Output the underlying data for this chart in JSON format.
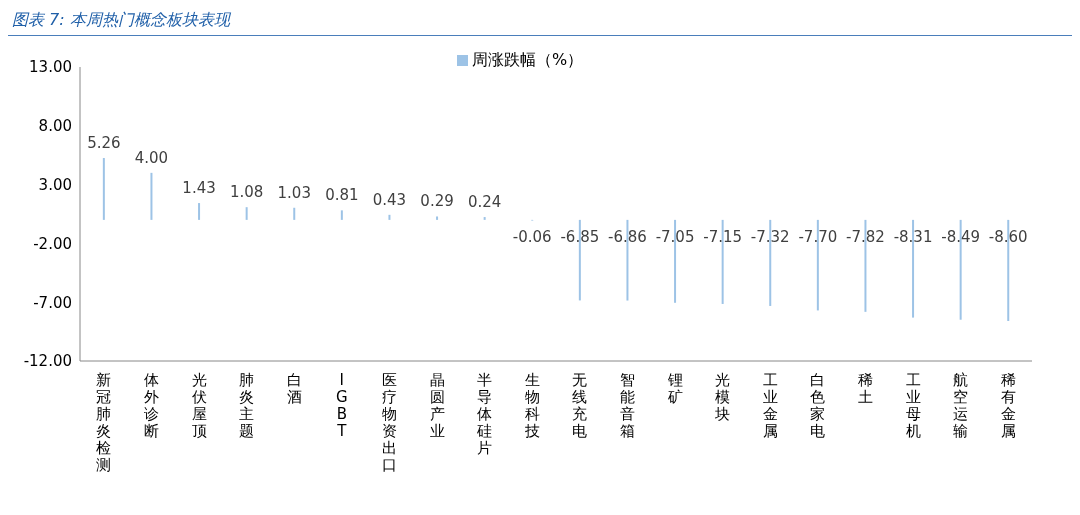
{
  "chart_data": {
    "type": "bar",
    "title": "图表 7: 本周热门概念板块表现",
    "categories": [
      "新冠肺炎检测",
      "体外诊断",
      "光伏屋顶",
      "肺炎主题",
      "白酒",
      "IGBT",
      "医疗物资出口",
      "晶圆产业",
      "半导体硅片",
      "生物科技",
      "无线充电",
      "智能音箱",
      "锂矿",
      "光模块",
      "工业金属",
      "白色家电",
      "稀土",
      "工业母机",
      "航空运输",
      "稀有金属"
    ],
    "series": [
      {
        "name": "周涨跌幅（%）",
        "color": "#9dc3e6",
        "values": [
          5.26,
          4.0,
          1.43,
          1.08,
          1.03,
          0.81,
          0.43,
          0.29,
          0.24,
          -0.06,
          -6.85,
          -6.86,
          -7.05,
          -7.15,
          -7.32,
          -7.7,
          -7.82,
          -8.31,
          -8.49,
          -8.6
        ],
        "value_labels": [
          "5.26",
          "4.00",
          "1.43",
          "1.08",
          "1.03",
          "0.81",
          "0.43",
          "0.29",
          "0.24",
          "-0.06",
          "-6.85",
          "-6.86",
          "-7.05",
          "-7.15",
          "-7.32",
          "-7.70",
          "-7.82",
          "-8.31",
          "-8.49",
          "-8.60"
        ]
      }
    ],
    "ylim": [
      -12,
      13
    ],
    "yticks": [
      {
        "value": -12,
        "label": "-12.00"
      },
      {
        "value": -7,
        "label": "-7.00"
      },
      {
        "value": -2,
        "label": "-2.00"
      },
      {
        "value": 3,
        "label": "3.00"
      },
      {
        "value": 8,
        "label": "8.00"
      },
      {
        "value": 13,
        "label": "13.00"
      }
    ],
    "grid": false,
    "legend": "top"
  }
}
